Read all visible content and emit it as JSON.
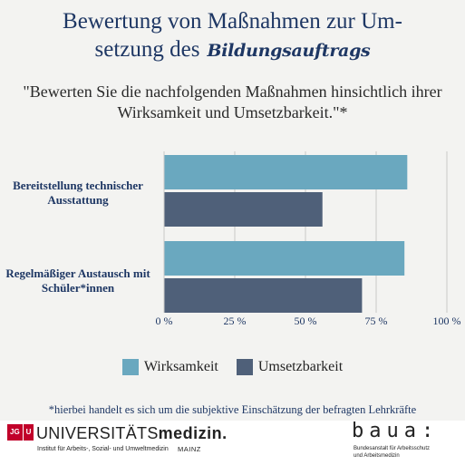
{
  "title": {
    "line1": "Bewertung von Maßnahmen zur Um-",
    "line2_prefix": "setzung des",
    "line2_script": "Bildungsauftrags"
  },
  "subtitle": "\"Bewerten Sie die nachfolgenden Maßnahmen hinsichtlich ihrer Wirksamkeit und Umsetzbarkeit.\"*",
  "footnote": "*hierbei handelt es sich um die subjektive Einschätzung der befragten Lehrkräfte",
  "colors": {
    "wirksamkeit": "#6aa8bf",
    "umsetzbarkeit": "#4f6079",
    "title": "#1e3764"
  },
  "chart_data": {
    "type": "bar",
    "orientation": "horizontal",
    "categories": [
      "Bereitstellung technischer Ausstattung",
      "Regelmäßiger Austausch mit Schüler*innen"
    ],
    "series": [
      {
        "name": "Wirksamkeit",
        "values": [
          86,
          85
        ]
      },
      {
        "name": "Umsetzbarkeit",
        "values": [
          56,
          70
        ]
      }
    ],
    "xlim": [
      0,
      100
    ],
    "ticks": [
      "0 %",
      "25 %",
      "50 %",
      "75 %",
      "100 %"
    ],
    "tick_values": [
      0,
      25,
      50,
      75,
      100
    ],
    "grid": true,
    "legend": "bottom"
  },
  "footer": {
    "jgu_left": "JG",
    "jgu_right": "U",
    "uni_prefix": "UNIVERSITÄTS",
    "uni_bold": "medizin.",
    "institute": "Institut für Arbeits-, Sozial- und Umweltmedizin",
    "mainz": "MAINZ",
    "baua_logo": "baua:",
    "baua_line1": "Bundesanstalt für Arbeitsschutz",
    "baua_line2": "und Arbeitsmedizin"
  }
}
